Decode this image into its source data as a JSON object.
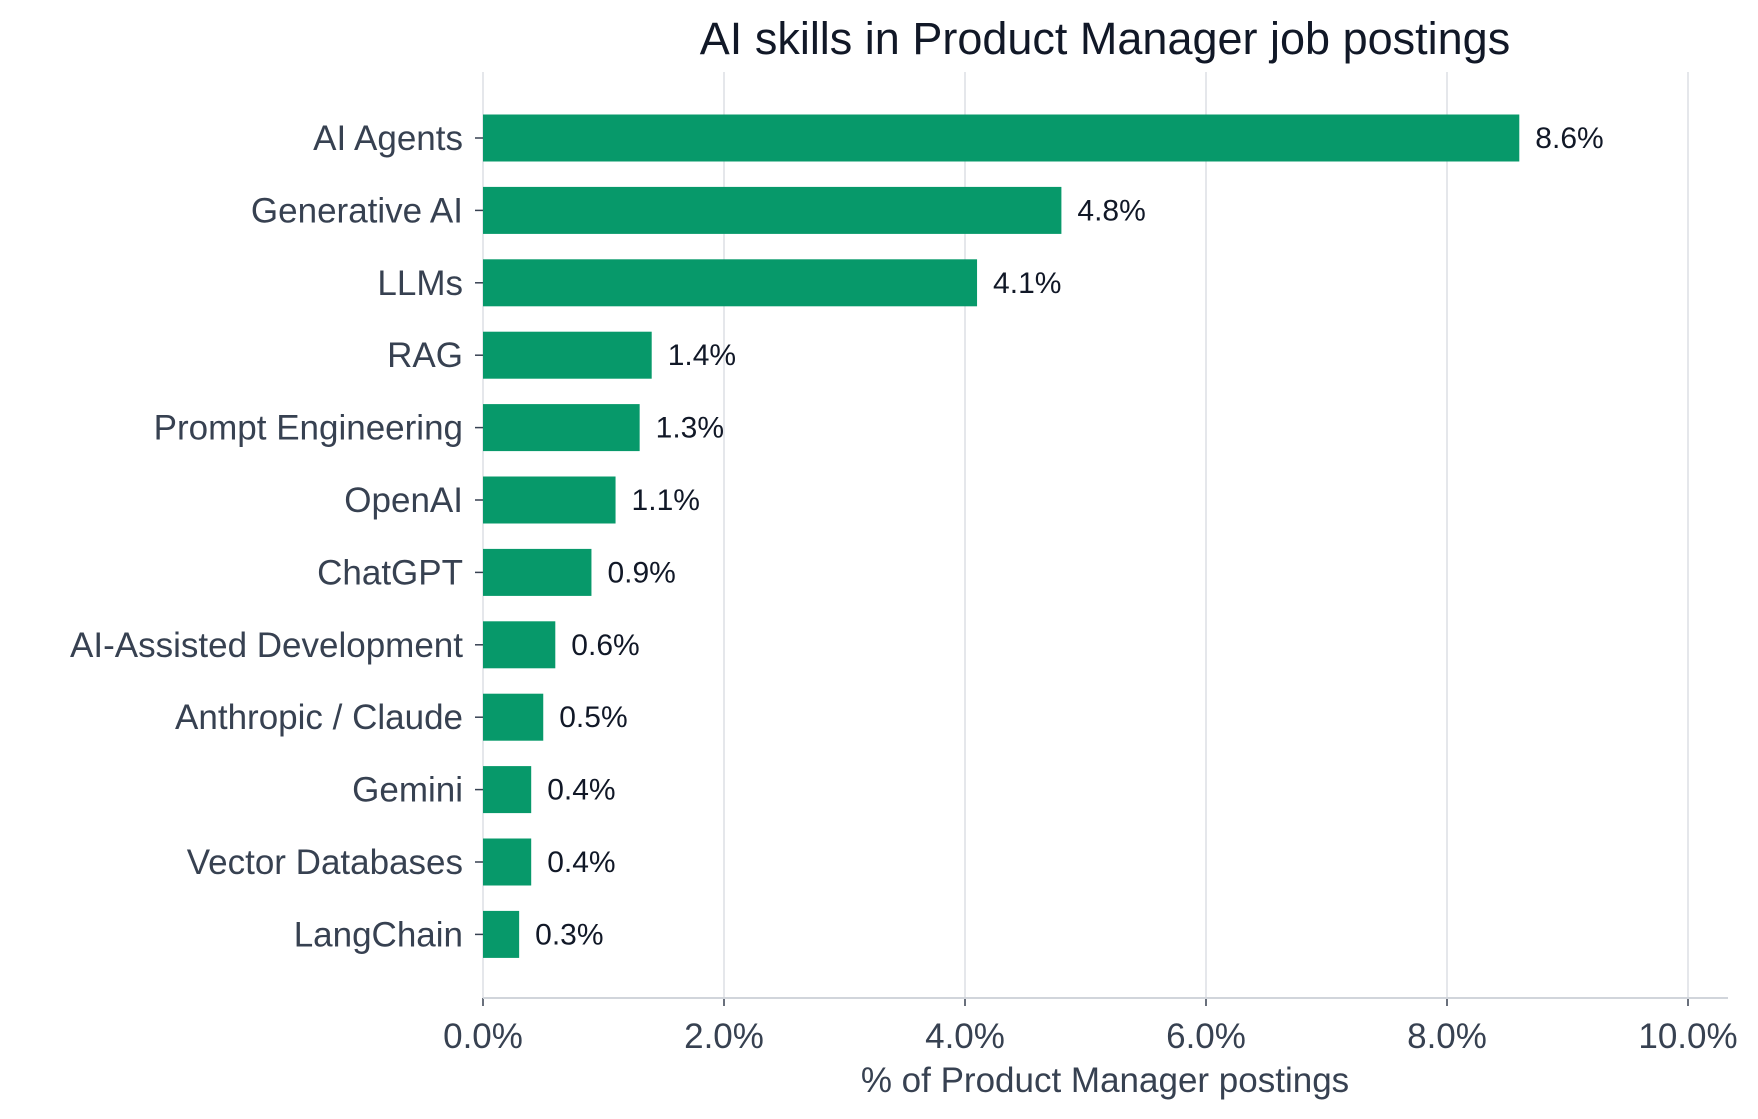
{
  "chart_data": {
    "type": "bar",
    "orientation": "horizontal",
    "title": "AI skills in Product Manager job postings",
    "xlabel": "% of Product Manager postings",
    "ylabel": "",
    "xlim": [
      0,
      10
    ],
    "xticks": [
      0,
      2,
      4,
      6,
      8,
      10
    ],
    "xtick_labels": [
      "0.0%",
      "2.0%",
      "4.0%",
      "6.0%",
      "8.0%",
      "10.0%"
    ],
    "categories": [
      "AI Agents",
      "Generative AI",
      "LLMs",
      "RAG",
      "Prompt Engineering",
      "OpenAI",
      "ChatGPT",
      "AI-Assisted Development",
      "Anthropic / Claude",
      "Gemini",
      "Vector Databases",
      "LangChain"
    ],
    "values": [
      8.6,
      4.8,
      4.1,
      1.4,
      1.3,
      1.1,
      0.9,
      0.6,
      0.5,
      0.4,
      0.4,
      0.3
    ],
    "value_labels": [
      "8.6%",
      "4.8%",
      "4.1%",
      "1.4%",
      "1.3%",
      "1.1%",
      "0.9%",
      "0.6%",
      "0.5%",
      "0.4%",
      "0.4%",
      "0.3%"
    ],
    "grid": "vertical",
    "legend": "none",
    "colors": {
      "bar": "#07996A",
      "grid": "#E5E7EB",
      "axis": "#D1D5DB",
      "text": "#374151",
      "title": "#111827"
    }
  }
}
